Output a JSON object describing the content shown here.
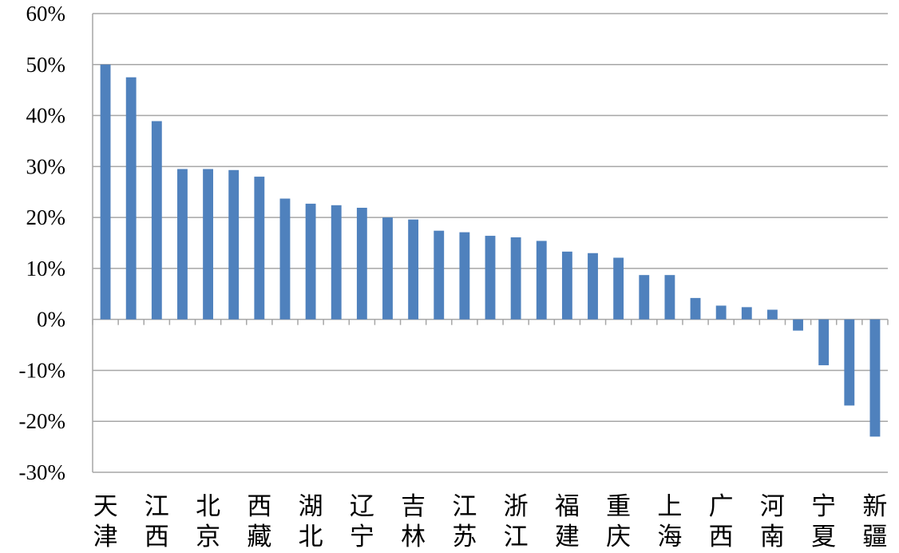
{
  "chart_data": {
    "type": "bar",
    "title": "",
    "xlabel": "",
    "ylabel": "",
    "ylim": [
      -30,
      60
    ],
    "y_ticks": [
      60,
      50,
      40,
      30,
      20,
      10,
      0,
      -10,
      -20,
      -30
    ],
    "y_tick_labels": [
      "60%",
      "50%",
      "40%",
      "30%",
      "20%",
      "10%",
      "0%",
      "-10%",
      "-20%",
      "-30%"
    ],
    "grid": true,
    "legend": "none",
    "bar_color": "#4f81bd",
    "categories": [
      {
        "name": "天津",
        "value": 50.0,
        "label_lines": [
          "天",
          "津"
        ]
      },
      {
        "name": "",
        "value": 47.5
      },
      {
        "name": "江西",
        "value": 38.9,
        "label_lines": [
          "江",
          "西"
        ]
      },
      {
        "name": "",
        "value": 29.5
      },
      {
        "name": "北京",
        "value": 29.5,
        "label_lines": [
          "北",
          "京"
        ]
      },
      {
        "name": "",
        "value": 29.3
      },
      {
        "name": "西藏",
        "value": 28.0,
        "label_lines": [
          "西",
          "藏"
        ]
      },
      {
        "name": "",
        "value": 23.7
      },
      {
        "name": "湖北",
        "value": 22.7,
        "label_lines": [
          "湖",
          "北"
        ]
      },
      {
        "name": "",
        "value": 22.4
      },
      {
        "name": "辽宁",
        "value": 21.9,
        "label_lines": [
          "辽",
          "宁"
        ]
      },
      {
        "name": "",
        "value": 20.0
      },
      {
        "name": "吉林",
        "value": 19.6,
        "label_lines": [
          "吉",
          "林"
        ]
      },
      {
        "name": "",
        "value": 17.4
      },
      {
        "name": "江苏",
        "value": 17.1,
        "label_lines": [
          "江",
          "苏"
        ]
      },
      {
        "name": "",
        "value": 16.4
      },
      {
        "name": "浙江",
        "value": 16.1,
        "label_lines": [
          "浙",
          "江"
        ]
      },
      {
        "name": "",
        "value": 15.4
      },
      {
        "name": "福建",
        "value": 13.3,
        "label_lines": [
          "福",
          "建"
        ]
      },
      {
        "name": "",
        "value": 13.0
      },
      {
        "name": "重庆",
        "value": 12.1,
        "label_lines": [
          "重",
          "庆"
        ]
      },
      {
        "name": "",
        "value": 8.7
      },
      {
        "name": "上海",
        "value": 8.7,
        "label_lines": [
          "上",
          "海"
        ]
      },
      {
        "name": "",
        "value": 4.2
      },
      {
        "name": "广西",
        "value": 2.7,
        "label_lines": [
          "广",
          "西"
        ]
      },
      {
        "name": "",
        "value": 2.4
      },
      {
        "name": "河南",
        "value": 1.9,
        "label_lines": [
          "河",
          "南"
        ]
      },
      {
        "name": "",
        "value": -2.2
      },
      {
        "name": "宁夏",
        "value": -9.0,
        "label_lines": [
          "宁",
          "夏"
        ]
      },
      {
        "name": "",
        "value": -16.9
      },
      {
        "name": "新疆",
        "value": -23.0,
        "label_lines": [
          "新",
          "疆"
        ]
      }
    ]
  }
}
